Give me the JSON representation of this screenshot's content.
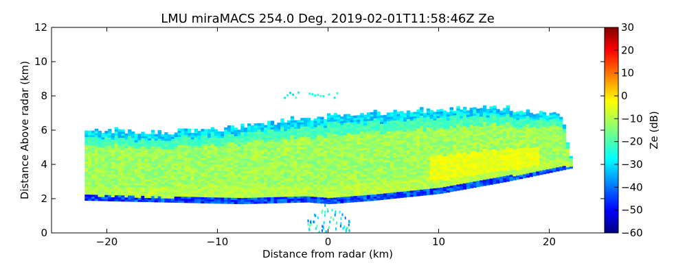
{
  "chart_data": {
    "type": "heatmap",
    "title": "LMU miraMACS 254.0 Deg. 2019-02-01T11:58:46Z  Ze",
    "xlabel": "Distance from radar (km)",
    "ylabel": "Distance Above radar  (km)",
    "xlim": [
      -25,
      25
    ],
    "ylim": [
      0,
      12
    ],
    "xticks": [
      -20,
      -10,
      0,
      10,
      20
    ],
    "xtick_labels": [
      "−20",
      "−10",
      "0",
      "10",
      "20"
    ],
    "yticks": [
      0,
      2,
      4,
      6,
      8,
      10,
      12
    ],
    "ytick_labels": [
      "0",
      "2",
      "4",
      "6",
      "8",
      "10",
      "12"
    ],
    "colorbar": {
      "label": "Ze (dB)",
      "range": [
        -60,
        30
      ],
      "ticks": [
        30,
        20,
        10,
        0,
        -10,
        -20,
        -30,
        -40,
        -50,
        -60
      ],
      "tick_labels": [
        "30",
        "20",
        "10",
        "0",
        "−10",
        "−20",
        "−30",
        "−40",
        "−50",
        "−60"
      ],
      "colormap": "jet",
      "colors": [
        "#00007f",
        "#0000ff",
        "#007fff",
        "#00ffff",
        "#7fff7f",
        "#ffff00",
        "#ff7f00",
        "#ff0000",
        "#7f0000"
      ]
    },
    "echo_region": {
      "bottom_edge_km": [
        [
          -22,
          1.9
        ],
        [
          -15,
          1.8
        ],
        [
          -8,
          1.7
        ],
        [
          -2,
          1.8
        ],
        [
          0,
          1.7
        ],
        [
          4,
          1.9
        ],
        [
          10,
          2.3
        ],
        [
          16,
          3.0
        ],
        [
          22,
          3.8
        ]
      ],
      "top_edge_km": [
        [
          -21.5,
          6.1
        ],
        [
          -15,
          6.0
        ],
        [
          -8,
          6.3
        ],
        [
          -3,
          6.8
        ],
        [
          0,
          7.0
        ],
        [
          6,
          7.2
        ],
        [
          14,
          7.5
        ],
        [
          21,
          7.0
        ],
        [
          22,
          4.0
        ]
      ],
      "typical_ze_dB": -12,
      "upper_edge_ze_dB": -35,
      "base_ze_dB": -50,
      "core_max_ze_dB": -3
    },
    "upper_patch_km": {
      "x": [
        -4,
        1
      ],
      "y": [
        7.8,
        8.3
      ],
      "ze_dB": -30
    },
    "near_radar_clutter_km": {
      "x": [
        -2,
        2
      ],
      "y": [
        0,
        1.8
      ],
      "ze_dB": -40
    }
  }
}
